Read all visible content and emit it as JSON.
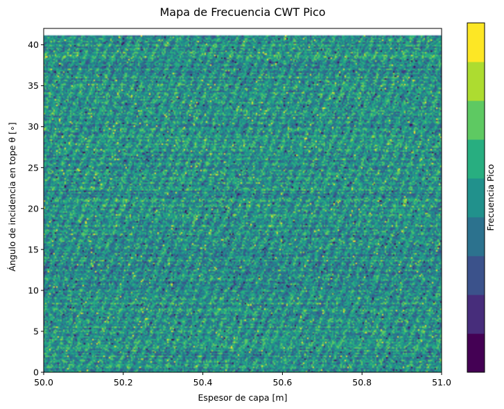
{
  "chart_data": {
    "type": "heatmap",
    "title": "Mapa de Frecuencia CWT Pico",
    "xlabel": "Espesor de capa [m]",
    "ylabel": "Ángulo de incidencia en tope θ [∘]",
    "xlim": [
      50.0,
      51.0
    ],
    "ylim": [
      0,
      42
    ],
    "data_extent_y": [
      0,
      41.2
    ],
    "x_ticks": [
      "50.0",
      "50.2",
      "50.4",
      "50.6",
      "50.8",
      "51.0"
    ],
    "x_tick_values": [
      50.0,
      50.2,
      50.4,
      50.6,
      50.8,
      51.0
    ],
    "y_ticks": [
      "0",
      "5",
      "10",
      "15",
      "20",
      "25",
      "30",
      "35",
      "40"
    ],
    "y_tick_values": [
      0,
      5,
      10,
      15,
      20,
      25,
      30,
      35,
      40
    ],
    "grid": false,
    "colorbar": {
      "label": "Frecuencia Pico",
      "levels": 9,
      "tick_labels": [],
      "colors": [
        "#440154",
        "#472d7b",
        "#3b528b",
        "#2c728e",
        "#21918c",
        "#28ae80",
        "#5ec962",
        "#addc30",
        "#fde725"
      ]
    },
    "dominant_colors": [
      "#21918c",
      "#28ae80",
      "#2c728e"
    ],
    "note_pattern": "noisy field dominated by mid-level (teal/green) values with fine horizontal banding"
  }
}
